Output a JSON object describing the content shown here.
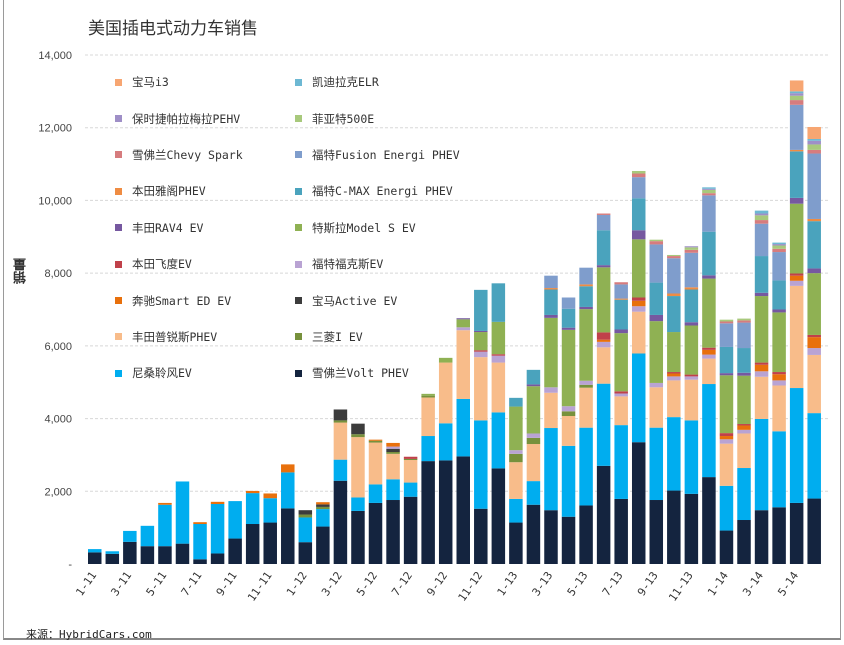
{
  "chart_data": {
    "type": "bar",
    "stacked": true,
    "title": "美国插电式动力车销售",
    "xlabel": "",
    "ylabel": "销量",
    "ylim": [
      0,
      14000
    ],
    "yticks": [
      0,
      2000,
      4000,
      6000,
      8000,
      10000,
      12000,
      14000
    ],
    "ytick_labels": [
      "-",
      "2,000",
      "4,000",
      "6,000",
      "8,000",
      "10,000",
      "12,000",
      "14,000"
    ],
    "grid": true,
    "legend_position": "top-left",
    "categories": [
      "1-11",
      "2-11",
      "3-11",
      "4-11",
      "5-11",
      "6-11",
      "7-11",
      "8-11",
      "9-11",
      "10-11",
      "11-11",
      "12-11",
      "1-12",
      "2-12",
      "3-12",
      "4-12",
      "5-12",
      "6-12",
      "7-12",
      "8-12",
      "9-12",
      "10-12",
      "11-12",
      "12-12",
      "1-13",
      "2-13",
      "3-13",
      "4-13",
      "5-13",
      "6-13",
      "7-13",
      "8-13",
      "9-13",
      "10-13",
      "11-13",
      "12-13",
      "1-14",
      "2-14",
      "3-14",
      "4-14",
      "5-14",
      "6-14"
    ],
    "xtick_labels": [
      "1-11",
      "3-11",
      "5-11",
      "7-11",
      "9-11",
      "11-11",
      "1-12",
      "3-12",
      "5-12",
      "7-12",
      "9-12",
      "11-12",
      "1-13",
      "3-13",
      "5-13",
      "7-13",
      "9-13",
      "11-13",
      "1-14",
      "3-14",
      "5-14"
    ],
    "series": [
      {
        "name": "雪佛兰Volt PHEV",
        "color": "#14243f",
        "values": [
          320,
          280,
          610,
          490,
          490,
          560,
          130,
          290,
          700,
          1100,
          1140,
          1530,
          600,
          1030,
          2290,
          1460,
          1680,
          1760,
          1850,
          2830,
          2850,
          2960,
          1520,
          2630,
          1140,
          1630,
          1480,
          1300,
          1610,
          2700,
          1790,
          3350,
          1760,
          2020,
          1930,
          2390,
          920,
          1210,
          1480,
          1560,
          1680,
          1800
        ]
      },
      {
        "name": "尼桑聆风EV",
        "color": "#00adef",
        "values": [
          90,
          70,
          300,
          560,
          1140,
          1710,
          970,
          1360,
          1030,
          850,
          670,
          990,
          680,
          480,
          580,
          370,
          510,
          570,
          390,
          690,
          1020,
          1580,
          2430,
          1540,
          650,
          650,
          2260,
          1950,
          2140,
          2260,
          2030,
          2440,
          1990,
          2020,
          2020,
          2560,
          1230,
          1430,
          2510,
          2090,
          3160,
          2350
        ]
      },
      {
        "name": "丰田普锐斯PHEV",
        "color": "#f8bc8a",
        "values": [
          0,
          0,
          0,
          0,
          0,
          0,
          0,
          0,
          0,
          0,
          0,
          0,
          0,
          0,
          1020,
          1660,
          1150,
          700,
          620,
          1060,
          1670,
          1890,
          1740,
          1370,
          1010,
          1020,
          970,
          820,
          1100,
          1000,
          790,
          1150,
          1110,
          1010,
          1120,
          700,
          1160,
          950,
          1160,
          1260,
          2810,
          1600
        ]
      },
      {
        "name": "三菱I EV",
        "color": "#77913c",
        "values": [
          0,
          0,
          0,
          0,
          0,
          0,
          0,
          0,
          0,
          0,
          0,
          0,
          80,
          60,
          60,
          80,
          50,
          50,
          30,
          50,
          0,
          0,
          0,
          0,
          230,
          170,
          0,
          130,
          80,
          0,
          0,
          0,
          0,
          0,
          0,
          0,
          0,
          0,
          0,
          0,
          0,
          0
        ]
      },
      {
        "name": "宝马Active EV",
        "color": "#3c3c3c",
        "values": [
          0,
          0,
          0,
          0,
          0,
          0,
          0,
          0,
          0,
          0,
          0,
          0,
          120,
          70,
          300,
          290,
          0,
          90,
          0,
          0,
          0,
          0,
          0,
          0,
          0,
          0,
          0,
          0,
          0,
          0,
          0,
          0,
          0,
          0,
          0,
          0,
          0,
          0,
          0,
          0,
          0,
          0
        ]
      },
      {
        "name": "福特福克斯EV",
        "color": "#b9a3d3",
        "values": [
          0,
          0,
          0,
          0,
          0,
          0,
          0,
          0,
          0,
          0,
          0,
          0,
          0,
          0,
          0,
          0,
          0,
          60,
          0,
          0,
          0,
          80,
          150,
          190,
          100,
          120,
          150,
          140,
          110,
          150,
          80,
          150,
          120,
          110,
          90,
          110,
          120,
          100,
          150,
          140,
          140,
          190
        ]
      },
      {
        "name": "奔驰Smart ED EV",
        "color": "#e8700c",
        "values": [
          0,
          0,
          0,
          0,
          50,
          0,
          50,
          60,
          0,
          60,
          130,
          220,
          0,
          60,
          0,
          0,
          30,
          100,
          0,
          0,
          0,
          0,
          0,
          0,
          0,
          0,
          0,
          0,
          0,
          60,
          0,
          150,
          0,
          80,
          0,
          130,
          90,
          120,
          180,
          170,
          140,
          300
        ]
      },
      {
        "name": "本田飞度EV",
        "color": "#c0414a",
        "values": [
          0,
          0,
          0,
          0,
          0,
          0,
          0,
          0,
          0,
          0,
          0,
          0,
          0,
          0,
          0,
          0,
          0,
          0,
          60,
          0,
          0,
          0,
          40,
          40,
          0,
          0,
          0,
          0,
          0,
          200,
          60,
          90,
          0,
          40,
          50,
          60,
          80,
          40,
          60,
          60,
          60,
          60
        ]
      },
      {
        "name": "特斯拉Model S EV",
        "color": "#8fb153",
        "values": [
          0,
          0,
          0,
          0,
          0,
          0,
          0,
          0,
          0,
          0,
          0,
          0,
          0,
          0,
          0,
          0,
          0,
          0,
          0,
          50,
          130,
          220,
          500,
          890,
          1200,
          1300,
          1910,
          2100,
          1970,
          1790,
          1600,
          1600,
          1700,
          1100,
          1350,
          1900,
          1590,
          1330,
          1830,
          1640,
          1920,
          1700
        ]
      },
      {
        "name": "丰田RAV4 EV",
        "color": "#7658a0",
        "values": [
          0,
          0,
          0,
          0,
          0,
          0,
          0,
          0,
          0,
          0,
          0,
          0,
          0,
          0,
          0,
          0,
          0,
          0,
          0,
          0,
          0,
          30,
          30,
          0,
          0,
          50,
          80,
          60,
          60,
          60,
          100,
          250,
          170,
          0,
          90,
          90,
          60,
          80,
          90,
          80,
          160,
          130
        ]
      },
      {
        "name": "福特C-MAX Energi PHEV",
        "color": "#4aa3bd",
        "values": [
          0,
          0,
          0,
          0,
          0,
          0,
          0,
          0,
          0,
          0,
          0,
          0,
          0,
          0,
          0,
          0,
          0,
          0,
          0,
          0,
          0,
          0,
          1130,
          1060,
          240,
          400,
          700,
          520,
          570,
          960,
          820,
          880,
          890,
          990,
          900,
          1200,
          720,
          680,
          1010,
          800,
          1280,
          1300
        ]
      },
      {
        "name": "本田雅阁PHEV",
        "color": "#ef8c43",
        "values": [
          0,
          0,
          0,
          0,
          0,
          0,
          0,
          0,
          0,
          0,
          0,
          0,
          0,
          0,
          0,
          0,
          0,
          0,
          0,
          0,
          0,
          0,
          0,
          0,
          0,
          0,
          40,
          0,
          50,
          0,
          30,
          0,
          0,
          70,
          60,
          0,
          0,
          0,
          0,
          0,
          40,
          60
        ]
      },
      {
        "name": "福特Fusion Energi PHEV",
        "color": "#7f9dcc",
        "values": [
          0,
          0,
          0,
          0,
          0,
          0,
          0,
          0,
          0,
          0,
          0,
          0,
          0,
          0,
          0,
          0,
          0,
          0,
          0,
          0,
          0,
          0,
          0,
          0,
          0,
          0,
          340,
          310,
          460,
          420,
          390,
          580,
          1050,
          970,
          950,
          1000,
          650,
          700,
          890,
          780,
          1240,
          1800
        ]
      },
      {
        "name": "雪佛兰Chevy Spark",
        "color": "#d67c7e",
        "values": [
          0,
          0,
          0,
          0,
          0,
          0,
          0,
          0,
          0,
          0,
          0,
          0,
          0,
          0,
          0,
          0,
          0,
          0,
          0,
          0,
          0,
          0,
          0,
          0,
          0,
          0,
          0,
          0,
          0,
          40,
          60,
          100,
          90,
          60,
          80,
          60,
          50,
          60,
          100,
          90,
          130,
          100
        ]
      },
      {
        "name": "菲亚特500E",
        "color": "#a8c97c",
        "values": [
          0,
          0,
          0,
          0,
          0,
          0,
          0,
          0,
          0,
          0,
          0,
          0,
          0,
          0,
          0,
          0,
          0,
          0,
          0,
          0,
          0,
          0,
          0,
          0,
          0,
          0,
          0,
          0,
          0,
          0,
          0,
          70,
          40,
          30,
          70,
          90,
          50,
          50,
          130,
          90,
          120,
          150
        ]
      },
      {
        "name": "保时捷帕拉梅拉PEHV",
        "color": "#9f8fc7",
        "values": [
          0,
          0,
          0,
          0,
          0,
          0,
          0,
          0,
          0,
          0,
          0,
          0,
          0,
          0,
          0,
          0,
          0,
          0,
          0,
          0,
          0,
          0,
          0,
          0,
          0,
          0,
          0,
          0,
          0,
          0,
          0,
          0,
          0,
          0,
          30,
          30,
          0,
          0,
          50,
          40,
          70,
          100
        ]
      },
      {
        "name": "凯迪拉克ELR",
        "color": "#6db8d3",
        "values": [
          0,
          0,
          0,
          0,
          0,
          0,
          0,
          0,
          0,
          0,
          0,
          0,
          0,
          0,
          0,
          0,
          0,
          0,
          0,
          0,
          0,
          0,
          0,
          0,
          0,
          0,
          0,
          0,
          0,
          0,
          0,
          0,
          0,
          0,
          0,
          40,
          0,
          0,
          80,
          40,
          50,
          50
        ]
      },
      {
        "name": "宝马i3",
        "color": "#f7a672",
        "values": [
          0,
          0,
          0,
          0,
          0,
          0,
          0,
          0,
          0,
          0,
          0,
          0,
          0,
          0,
          0,
          0,
          0,
          0,
          0,
          0,
          0,
          0,
          0,
          0,
          0,
          0,
          0,
          0,
          0,
          0,
          0,
          0,
          0,
          0,
          0,
          0,
          0,
          0,
          0,
          0,
          300,
          330
        ]
      }
    ]
  },
  "legend": {
    "items": [
      {
        "label": "宝马i3",
        "color": "#f7a672"
      },
      {
        "label": "凯迪拉克ELR",
        "color": "#6db8d3"
      },
      {
        "label": "保时捷帕拉梅拉PEHV",
        "color": "#9f8fc7"
      },
      {
        "label": "菲亚特500E",
        "color": "#a8c97c"
      },
      {
        "label": "雪佛兰Chevy Spark",
        "color": "#d67c7e"
      },
      {
        "label": "福特Fusion Energi PHEV",
        "color": "#7f9dcc"
      },
      {
        "label": "本田雅阁PHEV",
        "color": "#ef8c43"
      },
      {
        "label": "福特C-MAX Energi PHEV",
        "color": "#4aa3bd"
      },
      {
        "label": "丰田RAV4 EV",
        "color": "#7658a0"
      },
      {
        "label": "特斯拉Model S EV",
        "color": "#8fb153"
      },
      {
        "label": "本田飞度EV",
        "color": "#c0414a"
      },
      {
        "label": "福特福克斯EV",
        "color": "#b9a3d3"
      },
      {
        "label": "奔驰Smart ED EV",
        "color": "#e8700c"
      },
      {
        "label": "宝马Active EV",
        "color": "#3c3c3c"
      },
      {
        "label": "丰田普锐斯PHEV",
        "color": "#f8bc8a"
      },
      {
        "label": "三菱I EV",
        "color": "#77913c"
      },
      {
        "label": "尼桑聆风EV",
        "color": "#00adef"
      },
      {
        "label": "雪佛兰Volt PHEV",
        "color": "#14243f"
      }
    ]
  },
  "source": "来源：HybridCars.com"
}
